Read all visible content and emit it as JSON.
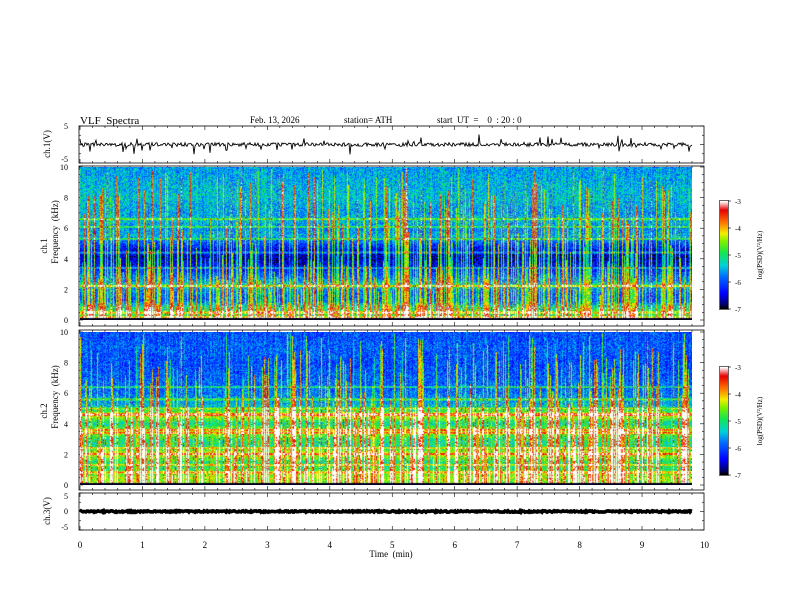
{
  "header": {
    "title": "VLF  Spectra",
    "date": "Feb. 13, 2026",
    "station": "station= ATH",
    "start_ut": "start  UT  =    0  : 20 : 0"
  },
  "chart_data": [
    {
      "type": "line",
      "name": "ch1-waveform",
      "ylabel": "ch.1(V)",
      "ylim": [
        -5,
        5
      ],
      "ytick_labels": [
        "5",
        "-5"
      ],
      "xlim": [
        0,
        10
      ],
      "data_end_min": 9.8,
      "baseline_v": 0.0,
      "noise_amplitude_v": 0.5,
      "spike_amplitude_v": 2.5
    },
    {
      "type": "heatmap",
      "name": "ch1-spectrogram",
      "ylabel": "ch.1\nFrequency  (kHz)",
      "ylabel_lines": [
        "ch.1",
        "Frequency  (kHz)"
      ],
      "ylim": [
        0,
        10
      ],
      "ytick_labels": [
        "0",
        "2",
        "4",
        "6",
        "8",
        "10"
      ],
      "xlim": [
        0,
        10
      ],
      "data_end_min": 9.8,
      "zlim": [
        -7,
        -3
      ],
      "colorbar_label": "log(PSD)(V²/Hz)",
      "colorbar_ticks": [
        "-3",
        "-4",
        "-5",
        "-6",
        "-7"
      ],
      "frequency_profile_kHz": [
        [
          0.0,
          -4.9
        ],
        [
          0.4,
          -4.9
        ],
        [
          0.8,
          -5.1
        ],
        [
          1.2,
          -5.9
        ],
        [
          1.6,
          -5.9
        ],
        [
          2.0,
          -5.7
        ],
        [
          2.2,
          -5.0
        ],
        [
          2.5,
          -5.6
        ],
        [
          3.0,
          -6.0
        ],
        [
          3.5,
          -6.4
        ],
        [
          4.0,
          -6.6
        ],
        [
          4.5,
          -6.5
        ],
        [
          5.0,
          -6.0
        ],
        [
          5.5,
          -5.5
        ],
        [
          6.0,
          -5.7
        ],
        [
          6.5,
          -5.4
        ],
        [
          7.0,
          -5.6
        ],
        [
          8.0,
          -5.4
        ],
        [
          9.0,
          -5.5
        ],
        [
          10.0,
          -5.6
        ]
      ],
      "tone_lines_kHz": [
        0.15,
        0.45,
        2.2,
        3.4,
        4.4,
        5.3,
        6.1,
        6.6
      ],
      "sferic_rate_per_min": 55
    },
    {
      "type": "heatmap",
      "name": "ch2-spectrogram",
      "ylabel": "ch.2\nFrequency  (kHz)",
      "ylabel_lines": [
        "ch.2",
        "Frequency  (kHz)"
      ],
      "ylim": [
        0,
        10
      ],
      "ytick_labels": [
        "0",
        "2",
        "4",
        "6",
        "8",
        "10"
      ],
      "xlim": [
        0,
        10
      ],
      "data_end_min": 9.8,
      "zlim": [
        -7,
        -3
      ],
      "colorbar_label": "log(PSD)(V²/Hz)",
      "colorbar_ticks": [
        "-3",
        "-4",
        "-5",
        "-6",
        "-7"
      ],
      "frequency_profile_kHz": [
        [
          0.0,
          -4.6
        ],
        [
          0.5,
          -4.4
        ],
        [
          1.0,
          -4.9
        ],
        [
          1.5,
          -5.0
        ],
        [
          2.0,
          -4.2
        ],
        [
          2.5,
          -5.1
        ],
        [
          3.0,
          -5.0
        ],
        [
          3.5,
          -4.3
        ],
        [
          4.0,
          -5.2
        ],
        [
          4.6,
          -4.1
        ],
        [
          5.0,
          -5.4
        ],
        [
          5.5,
          -5.6
        ],
        [
          6.0,
          -5.8
        ],
        [
          7.0,
          -5.9
        ],
        [
          8.0,
          -6.0
        ],
        [
          9.0,
          -5.9
        ],
        [
          10.0,
          -6.0
        ]
      ],
      "tone_lines_kHz": [
        0.8,
        1.3,
        2.0,
        2.4,
        3.4,
        3.6,
        4.6,
        5.0,
        5.6,
        6.4
      ],
      "sferic_rate_per_min": 50
    },
    {
      "type": "line",
      "name": "ch3-waveform",
      "ylabel": "ch.3(V)",
      "ylim": [
        -5,
        5
      ],
      "ytick_labels": [
        "5",
        "0",
        "-5"
      ],
      "xlim": [
        0,
        10
      ],
      "data_end_min": 9.8,
      "baseline_v": 0.0,
      "noise_amplitude_v": 0.2,
      "spike_amplitude_v": 0.0
    }
  ],
  "x_axis": {
    "xlabel": "Time  (min)",
    "ticks": [
      0,
      1,
      2,
      3,
      4,
      5,
      6,
      7,
      8,
      9,
      10
    ]
  }
}
